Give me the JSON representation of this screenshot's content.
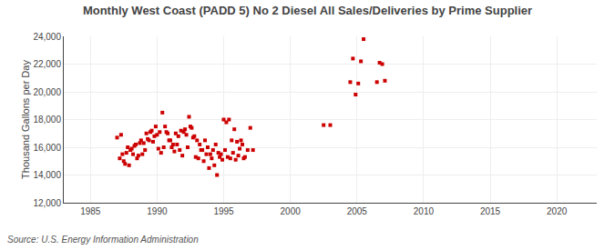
{
  "chart_data": {
    "type": "scatter",
    "title": "Monthly West Coast (PADD 5) No 2 Diesel All Sales/Deliveries by Prime Supplier",
    "ylabel": "Thousand Gallons per Day",
    "annotations": [
      "Source: U.S. Energy Information Administration"
    ],
    "color": "#cc0000",
    "marker": "square",
    "grid": true,
    "xlim": [
      1983,
      2023
    ],
    "ylim": [
      12000,
      24000
    ],
    "xticks": [
      1985,
      1990,
      1995,
      2000,
      2005,
      2010,
      2015,
      2020
    ],
    "yticks": [
      {
        "value": 12000,
        "label": "12,000"
      },
      {
        "value": 14000,
        "label": "14,000"
      },
      {
        "value": 16000,
        "label": "16,000"
      },
      {
        "value": 18000,
        "label": "18,000"
      },
      {
        "value": 20000,
        "label": "20,000"
      },
      {
        "value": 22000,
        "label": "22,000"
      },
      {
        "value": 24000,
        "label": "24,000"
      }
    ],
    "x": [
      1987.0,
      1987.2,
      1987.4,
      1987.6,
      1987.8,
      1988.0,
      1988.2,
      1988.4,
      1988.6,
      1988.8,
      1989.0,
      1989.2,
      1989.4,
      1989.6,
      1989.8,
      1990.0,
      1990.2,
      1990.4,
      1990.6,
      1990.8,
      1991.0,
      1991.2,
      1991.4,
      1991.6,
      1991.8,
      1992.0,
      1992.2,
      1992.4,
      1992.6,
      1992.8,
      1993.0,
      1993.2,
      1993.4,
      1993.6,
      1993.8,
      1994.0,
      1994.2,
      1994.4,
      1994.6,
      1994.8,
      1995.0,
      1995.2,
      1995.4,
      1995.6,
      1995.8,
      1996.0,
      1996.2,
      1996.4,
      1996.6,
      1996.8,
      1997.0,
      1997.2,
      2002.5,
      2003.0,
      2004.5,
      2004.7,
      2004.9,
      2005.1,
      2005.3,
      2005.5,
      2006.5,
      2006.7,
      2006.9,
      2007.1,
      1987.3,
      1987.5,
      1987.7,
      1987.9,
      1988.1,
      1988.3,
      1988.5,
      1988.7,
      1988.9,
      1989.1,
      1989.3,
      1989.5,
      1989.7,
      1989.9,
      1990.1,
      1990.3,
      1990.5,
      1990.7,
      1990.9,
      1991.1,
      1991.3,
      1991.5,
      1991.7,
      1991.9,
      1992.1,
      1992.3,
      1992.5,
      1992.7,
      1992.9,
      1993.1,
      1993.3,
      1993.5,
      1993.7,
      1993.9,
      1994.1,
      1994.3,
      1994.5,
      1994.7,
      1994.9,
      1995.1,
      1995.3,
      1995.5,
      1995.7,
      1995.9,
      1996.1,
      1996.3,
      1996.5
    ],
    "values": [
      16700,
      15200,
      15500,
      14800,
      16000,
      15800,
      15500,
      16200,
      15400,
      16500,
      16300,
      17000,
      16500,
      17200,
      16800,
      16900,
      17100,
      18500,
      17500,
      17000,
      16500,
      16200,
      17000,
      16800,
      17200,
      17100,
      16900,
      18200,
      17400,
      16800,
      16500,
      16200,
      15800,
      16500,
      16000,
      15500,
      15800,
      16200,
      15600,
      15500,
      18000,
      17800,
      18000,
      16500,
      17300,
      16400,
      15900,
      16200,
      15300,
      15800,
      17400,
      15800,
      17600,
      17600,
      20700,
      22400,
      19800,
      20600,
      22200,
      23800,
      20700,
      22100,
      22000,
      20800,
      16900,
      15000,
      15600,
      14700,
      15900,
      16100,
      15200,
      16300,
      15500,
      15800,
      16600,
      17100,
      16400,
      17500,
      15900,
      15600,
      16000,
      17100,
      16500,
      16000,
      15700,
      16200,
      15800,
      15400,
      17300,
      16000,
      17500,
      16700,
      15300,
      15200,
      15800,
      15000,
      15500,
      14500,
      15200,
      14700,
      14000,
      15300,
      15100,
      15800,
      15300,
      15200,
      15600,
      15100,
      15400,
      16500,
      15200
    ]
  }
}
